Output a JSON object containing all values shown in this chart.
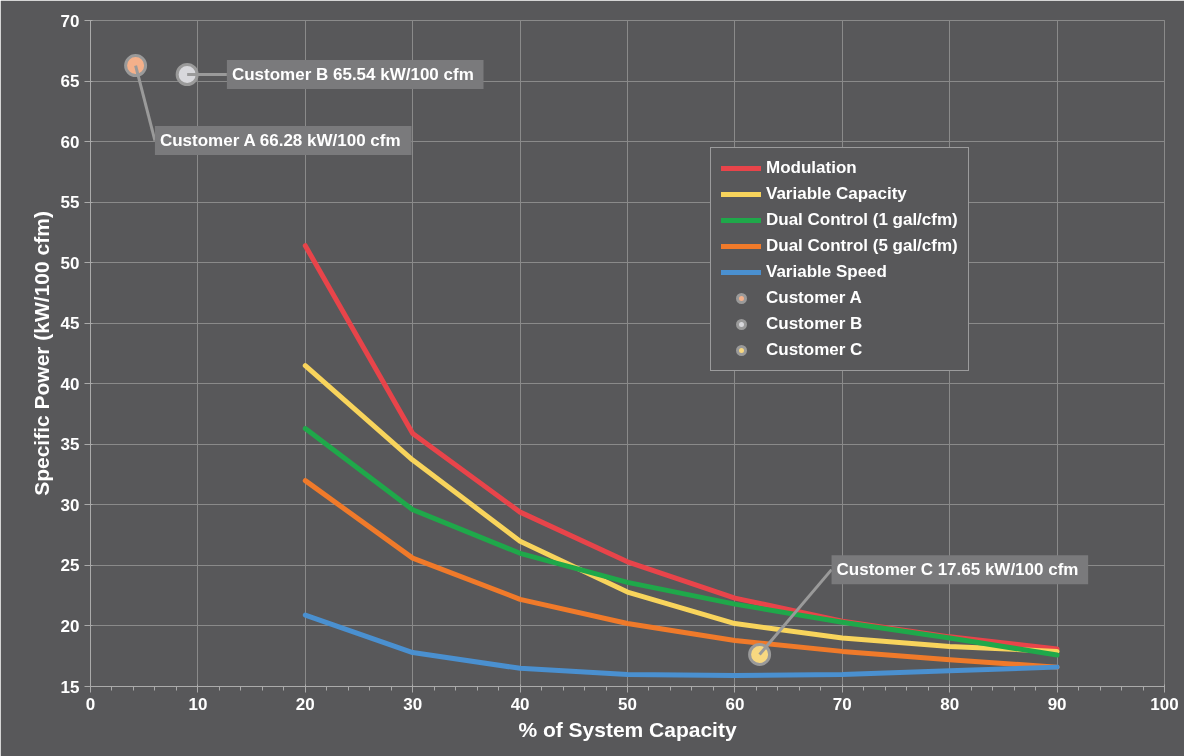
{
  "chart_data": {
    "type": "line",
    "xlabel": "% of System Capacity",
    "ylabel": "Specific Power (kW/100 cfm)",
    "xlim": [
      0,
      100
    ],
    "ylim": [
      15,
      70
    ],
    "xticks": [
      0,
      10,
      20,
      30,
      40,
      50,
      60,
      70,
      80,
      90,
      100
    ],
    "yticks": [
      15,
      20,
      25,
      30,
      35,
      40,
      45,
      50,
      55,
      60,
      65,
      70
    ],
    "grid": true,
    "legend": "top right",
    "line_style": "solid",
    "series": [
      {
        "name": "Modulation",
        "color": "#e8444a",
        "x": [
          20,
          30,
          40,
          50,
          60,
          70,
          80,
          90
        ],
        "values": [
          51.4,
          35.9,
          29.4,
          25.3,
          22.3,
          20.4,
          19.1,
          18.1
        ]
      },
      {
        "name": "Variable Capacity",
        "color": "#f8d45c",
        "x": [
          20,
          30,
          40,
          50,
          60,
          70,
          80,
          90
        ],
        "values": [
          41.5,
          33.7,
          27.0,
          22.8,
          20.2,
          19.0,
          18.3,
          17.9
        ]
      },
      {
        "name": "Dual Control (1 gal/cfm)",
        "color": "#1fa84a",
        "x": [
          20,
          30,
          40,
          50,
          60,
          70,
          80,
          90
        ],
        "values": [
          36.3,
          29.6,
          26.0,
          23.6,
          21.8,
          20.3,
          19.0,
          17.6
        ]
      },
      {
        "name": "Dual Control (5 gal/cfm)",
        "color": "#f07a2a",
        "x": [
          20,
          30,
          40,
          50,
          60,
          70,
          80,
          90
        ],
        "values": [
          32.0,
          25.6,
          22.2,
          20.2,
          18.8,
          17.9,
          17.2,
          16.6
        ]
      },
      {
        "name": "Variable Speed",
        "color": "#4a90d0",
        "x": [
          20,
          30,
          40,
          50,
          60,
          70,
          80,
          90
        ],
        "values": [
          20.9,
          17.8,
          16.5,
          16.0,
          15.9,
          16.0,
          16.3,
          16.6
        ]
      },
      {
        "name": "Customer A",
        "type": "scatter",
        "marker": "circle",
        "color": "#f4b08a",
        "x": [
          4.2
        ],
        "values": [
          66.28
        ]
      },
      {
        "name": "Customer B",
        "type": "scatter",
        "marker": "circle",
        "color": "#d8d8dc",
        "x": [
          9.0
        ],
        "values": [
          65.54
        ]
      },
      {
        "name": "Customer C",
        "type": "scatter",
        "marker": "circle",
        "color": "#f8d880",
        "x": [
          62.3
        ],
        "values": [
          17.65
        ]
      }
    ],
    "annotations": [
      {
        "text": "Customer A  66.28 kW/100 cfm",
        "x": 4.2,
        "y": 66.28
      },
      {
        "text": "Customer B  65.54 kW/100 cfm",
        "x": 9.0,
        "y": 65.54
      },
      {
        "text": "Customer C  17.65 kW/100 cfm",
        "x": 62.3,
        "y": 17.65
      }
    ]
  }
}
